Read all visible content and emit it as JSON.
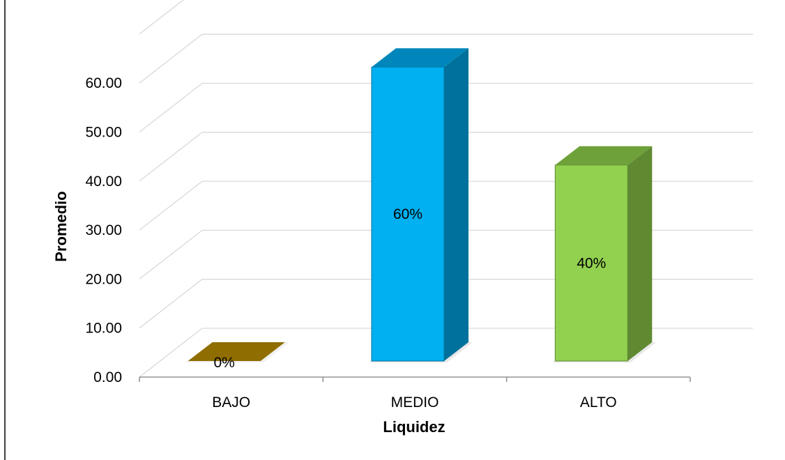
{
  "chart_data": {
    "type": "bar",
    "title": "",
    "xlabel": "Liquidez",
    "ylabel": "Promedio",
    "categories": [
      "BAJO",
      "MEDIO",
      "ALTO"
    ],
    "values": [
      0,
      60,
      40
    ],
    "data_labels": [
      "0%",
      "60%",
      "40%"
    ],
    "y_ticks": [
      "0.00",
      "10.00",
      "20.00",
      "30.00",
      "40.00",
      "50.00",
      "60.00"
    ],
    "ylim": [
      0,
      70
    ],
    "grid": true,
    "legend": "none",
    "style": "3d-column",
    "colors": {
      "BAJO": {
        "front": "#7f6000",
        "side": "#5e4700",
        "top": "#8f6d00"
      },
      "MEDIO": {
        "front": "#00b0f0",
        "side": "#00719c",
        "top": "#0086ba"
      },
      "ALTO": {
        "front": "#92d050",
        "side": "#5f8a32",
        "top": "#6fa13a"
      }
    }
  }
}
